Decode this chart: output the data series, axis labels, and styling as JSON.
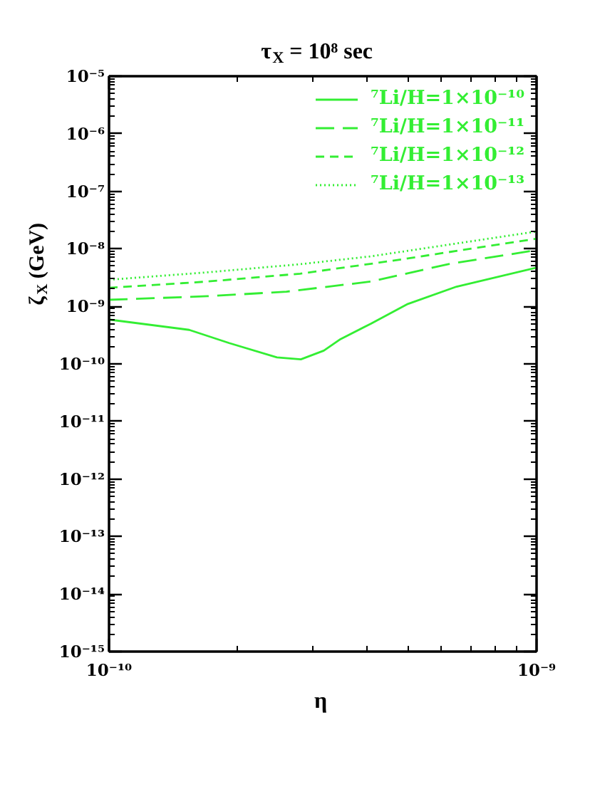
{
  "chart_data": {
    "type": "line",
    "title": "τ$_{X}$ = 10⁸ sec",
    "xlabel": "η",
    "ylabel": "ζ$_{X}$ (GeV)",
    "log": "xy",
    "xlim": [
      1e-10,
      1e-09
    ],
    "ylim": [
      1e-15,
      1e-05
    ],
    "xticks": [
      {
        "value": 1e-10,
        "label": "10⁻¹⁰"
      },
      {
        "value": 1e-09,
        "label": "10⁻⁹"
      }
    ],
    "yticks": [
      {
        "value": 1e-15,
        "label": "10⁻¹⁵"
      },
      {
        "value": 1e-14,
        "label": "10⁻¹⁴"
      },
      {
        "value": 1e-13,
        "label": "10⁻¹³"
      },
      {
        "value": 1e-12,
        "label": "10⁻¹²"
      },
      {
        "value": 1e-11,
        "label": "10⁻¹¹"
      },
      {
        "value": 1e-10,
        "label": "10⁻¹⁰"
      },
      {
        "value": 1e-09,
        "label": "10⁻⁹"
      },
      {
        "value": 1e-08,
        "label": "10⁻⁸"
      },
      {
        "value": 1e-07,
        "label": "10⁻⁷"
      },
      {
        "value": 1e-06,
        "label": "10⁻⁶"
      },
      {
        "value": 1e-05,
        "label": "10⁻⁵"
      }
    ],
    "legend": "top right",
    "series": [
      {
        "name": "⁷Li/H=1×10⁻¹⁰",
        "color": "#33ee33",
        "line_style": "solid",
        "x": [
          1e-10,
          1.54e-10,
          1.91e-10,
          2.47e-10,
          2.81e-10,
          3.18e-10,
          3.48e-10,
          4.1e-10,
          5e-10,
          6.5e-10,
          1e-09
        ],
        "values": [
          5.9e-10,
          3.9e-10,
          2.3e-10,
          1.3e-10,
          1.2e-10,
          1.7e-10,
          2.7e-10,
          5e-10,
          1.1e-09,
          2.2e-09,
          4.7e-09
        ]
      },
      {
        "name": "⁷Li/H=1×10⁻¹¹",
        "color": "#33ee33",
        "line_style": "longdash",
        "x": [
          1e-10,
          1.7e-10,
          2.6e-10,
          4.1e-10,
          6.2e-10,
          1e-09
        ],
        "values": [
          1.3e-09,
          1.5e-09,
          1.8e-09,
          2.7e-09,
          5.4e-09,
          9.5e-09
        ]
      },
      {
        "name": "⁷Li/H=1×10⁻¹²",
        "color": "#33ee33",
        "line_style": "dashed",
        "x": [
          1e-10,
          1.7e-10,
          2.8e-10,
          4.6e-10,
          1e-09
        ],
        "values": [
          2.1e-09,
          2.7e-09,
          3.7e-09,
          6.2e-09,
          1.5e-08
        ]
      },
      {
        "name": "⁷Li/H=1×10⁻¹³",
        "color": "#33ee33",
        "line_style": "dotted",
        "x": [
          1e-10,
          1.7e-10,
          2.8e-10,
          4.1e-10,
          1e-09
        ],
        "values": [
          2.9e-09,
          3.9e-09,
          5.4e-09,
          7.4e-09,
          2e-08
        ]
      }
    ]
  }
}
